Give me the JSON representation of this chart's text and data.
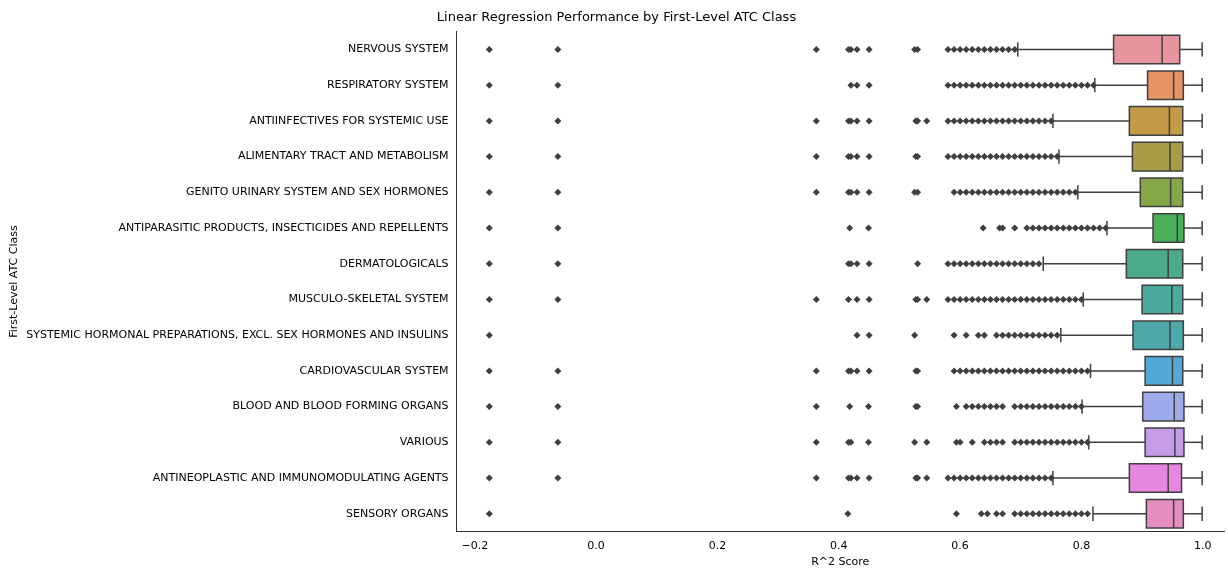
{
  "chart_data": {
    "type": "box",
    "title": "Linear Regression Performance by First-Level ATC Class",
    "xlabel": "R^2 Score",
    "ylabel": "First-Level ATC Class",
    "orientation": "horizontal",
    "grid": false,
    "legend": false,
    "marker": "diamond",
    "categories": [
      "NERVOUS SYSTEM",
      "RESPIRATORY SYSTEM",
      "ANTIINFECTIVES FOR SYSTEMIC USE",
      "ALIMENTARY TRACT AND METABOLISM",
      "GENITO URINARY SYSTEM AND SEX HORMONES",
      "ANTIPARASITIC PRODUCTS, INSECTICIDES AND REPELLENTS",
      "DERMATOLOGICALS",
      "MUSCULO-SKELETAL SYSTEM",
      "SYSTEMIC HORMONAL PREPARATIONS, EXCL. SEX HORMONES AND INSULINS",
      "CARDIOVASCULAR SYSTEM",
      "BLOOD AND BLOOD FORMING ORGANS",
      "VARIOUS",
      "ANTINEOPLASTIC AND IMMUNOMODULATING AGENTS",
      "SENSORY ORGANS"
    ],
    "colors": [
      "#e8949f",
      "#e59566",
      "#c39a48",
      "#a69d45",
      "#86a748",
      "#4ab05a",
      "#4bab8c",
      "#4cab9e",
      "#4ea9ab",
      "#52a9d8",
      "#9eabea",
      "#c59ce8",
      "#e688e0",
      "#e58fc0"
    ],
    "xlim": [
      -0.23,
      1.035
    ],
    "xticks": [
      {
        "value": -0.2,
        "label": "−0.2"
      },
      {
        "value": 0,
        "label": "0.0"
      },
      {
        "value": 0.2,
        "label": "0.2"
      },
      {
        "value": 0.4,
        "label": "0.4"
      },
      {
        "value": 0.6,
        "label": "0.6"
      },
      {
        "value": 0.8,
        "label": "0.8"
      },
      {
        "value": 1,
        "label": "1.0"
      }
    ],
    "boxes": [
      {
        "low": 0.695,
        "q1": 0.853,
        "median": 0.933,
        "q3": 0.962,
        "high": 0.999,
        "outliers": [
          -0.176,
          -0.063,
          0.363,
          0.416,
          0.42,
          0.43,
          0.45,
          0.525,
          0.53,
          0.58,
          0.59,
          0.6,
          0.61,
          0.62,
          0.63,
          0.64,
          0.65,
          0.66,
          0.67,
          0.68,
          0.69
        ]
      },
      {
        "low": 0.822,
        "q1": 0.909,
        "median": 0.952,
        "q3": 0.968,
        "high": 0.999,
        "outliers": [
          -0.176,
          -0.063,
          0.42,
          0.43,
          0.45,
          0.58,
          0.59,
          0.6,
          0.61,
          0.62,
          0.63,
          0.64,
          0.65,
          0.66,
          0.67,
          0.68,
          0.69,
          0.7,
          0.71,
          0.72,
          0.73,
          0.74,
          0.75,
          0.76,
          0.77,
          0.78,
          0.79,
          0.8,
          0.81,
          0.82
        ]
      },
      {
        "low": 0.753,
        "q1": 0.879,
        "median": 0.945,
        "q3": 0.967,
        "high": 0.999,
        "outliers": [
          -0.176,
          -0.063,
          0.363,
          0.416,
          0.42,
          0.43,
          0.45,
          0.527,
          0.53,
          0.545,
          0.58,
          0.59,
          0.6,
          0.61,
          0.62,
          0.63,
          0.64,
          0.65,
          0.66,
          0.67,
          0.68,
          0.69,
          0.7,
          0.71,
          0.72,
          0.73,
          0.74,
          0.75
        ]
      },
      {
        "low": 0.763,
        "q1": 0.884,
        "median": 0.946,
        "q3": 0.967,
        "high": 0.999,
        "outliers": [
          -0.176,
          -0.063,
          0.363,
          0.416,
          0.42,
          0.43,
          0.45,
          0.527,
          0.53,
          0.58,
          0.59,
          0.6,
          0.61,
          0.62,
          0.63,
          0.64,
          0.65,
          0.66,
          0.67,
          0.68,
          0.69,
          0.7,
          0.71,
          0.72,
          0.73,
          0.74,
          0.75,
          0.76
        ]
      },
      {
        "low": 0.794,
        "q1": 0.897,
        "median": 0.947,
        "q3": 0.967,
        "high": 0.999,
        "outliers": [
          -0.176,
          -0.063,
          0.363,
          0.416,
          0.42,
          0.43,
          0.45,
          0.525,
          0.53,
          0.59,
          0.6,
          0.61,
          0.62,
          0.63,
          0.64,
          0.65,
          0.66,
          0.67,
          0.68,
          0.69,
          0.7,
          0.71,
          0.72,
          0.73,
          0.74,
          0.75,
          0.76,
          0.77,
          0.78,
          0.79
        ]
      },
      {
        "low": 0.842,
        "q1": 0.918,
        "median": 0.958,
        "q3": 0.969,
        "high": 0.999,
        "outliers": [
          -0.176,
          -0.063,
          0.418,
          0.449,
          0.638,
          0.665,
          0.67,
          0.69,
          0.71,
          0.72,
          0.73,
          0.74,
          0.75,
          0.76,
          0.77,
          0.78,
          0.79,
          0.8,
          0.81,
          0.82,
          0.83,
          0.84
        ]
      },
      {
        "low": 0.737,
        "q1": 0.874,
        "median": 0.943,
        "q3": 0.967,
        "high": 0.999,
        "outliers": [
          -0.176,
          -0.063,
          0.416,
          0.42,
          0.43,
          0.45,
          0.53,
          0.58,
          0.59,
          0.6,
          0.61,
          0.62,
          0.63,
          0.64,
          0.65,
          0.66,
          0.67,
          0.68,
          0.69,
          0.7,
          0.71,
          0.72,
          0.73
        ]
      },
      {
        "low": 0.803,
        "q1": 0.9,
        "median": 0.949,
        "q3": 0.967,
        "high": 0.999,
        "outliers": [
          -0.176,
          -0.063,
          0.363,
          0.416,
          0.43,
          0.45,
          0.527,
          0.53,
          0.545,
          0.58,
          0.59,
          0.6,
          0.61,
          0.62,
          0.63,
          0.64,
          0.65,
          0.66,
          0.67,
          0.68,
          0.69,
          0.7,
          0.71,
          0.72,
          0.73,
          0.74,
          0.75,
          0.76,
          0.77,
          0.78,
          0.79,
          0.8
        ]
      },
      {
        "low": 0.766,
        "q1": 0.885,
        "median": 0.946,
        "q3": 0.968,
        "high": 0.999,
        "outliers": [
          -0.176,
          0.43,
          0.45,
          0.525,
          0.59,
          0.61,
          0.63,
          0.64,
          0.66,
          0.67,
          0.68,
          0.69,
          0.7,
          0.71,
          0.72,
          0.73,
          0.74,
          0.75,
          0.76
        ]
      },
      {
        "low": 0.815,
        "q1": 0.905,
        "median": 0.95,
        "q3": 0.967,
        "high": 0.999,
        "outliers": [
          -0.176,
          -0.063,
          0.363,
          0.416,
          0.42,
          0.43,
          0.45,
          0.527,
          0.53,
          0.59,
          0.6,
          0.61,
          0.62,
          0.63,
          0.64,
          0.65,
          0.66,
          0.67,
          0.68,
          0.69,
          0.7,
          0.71,
          0.72,
          0.73,
          0.74,
          0.75,
          0.76,
          0.77,
          0.78,
          0.79,
          0.8,
          0.81
        ]
      },
      {
        "low": 0.801,
        "q1": 0.901,
        "median": 0.953,
        "q3": 0.969,
        "high": 0.999,
        "outliers": [
          -0.176,
          -0.063,
          0.363,
          0.418,
          0.449,
          0.527,
          0.53,
          0.594,
          0.61,
          0.62,
          0.63,
          0.64,
          0.65,
          0.66,
          0.67,
          0.69,
          0.7,
          0.71,
          0.72,
          0.73,
          0.74,
          0.75,
          0.76,
          0.77,
          0.78,
          0.79,
          0.8
        ]
      },
      {
        "low": 0.812,
        "q1": 0.905,
        "median": 0.954,
        "q3": 0.969,
        "high": 0.999,
        "outliers": [
          -0.176,
          -0.063,
          0.363,
          0.416,
          0.42,
          0.449,
          0.525,
          0.545,
          0.594,
          0.6,
          0.62,
          0.64,
          0.65,
          0.66,
          0.67,
          0.69,
          0.7,
          0.71,
          0.72,
          0.73,
          0.74,
          0.75,
          0.76,
          0.77,
          0.78,
          0.79,
          0.8,
          0.81
        ]
      },
      {
        "low": 0.753,
        "q1": 0.879,
        "median": 0.943,
        "q3": 0.965,
        "high": 0.999,
        "outliers": [
          -0.176,
          -0.063,
          0.363,
          0.416,
          0.42,
          0.43,
          0.45,
          0.527,
          0.53,
          0.545,
          0.58,
          0.59,
          0.6,
          0.61,
          0.62,
          0.63,
          0.64,
          0.65,
          0.66,
          0.67,
          0.68,
          0.69,
          0.7,
          0.71,
          0.72,
          0.73,
          0.74,
          0.75
        ]
      },
      {
        "low": 0.819,
        "q1": 0.907,
        "median": 0.952,
        "q3": 0.968,
        "high": 0.999,
        "outliers": [
          -0.176,
          0.415,
          0.594,
          0.635,
          0.645,
          0.66,
          0.67,
          0.69,
          0.7,
          0.71,
          0.72,
          0.73,
          0.74,
          0.75,
          0.76,
          0.77,
          0.78,
          0.79,
          0.8,
          0.81
        ]
      }
    ]
  }
}
